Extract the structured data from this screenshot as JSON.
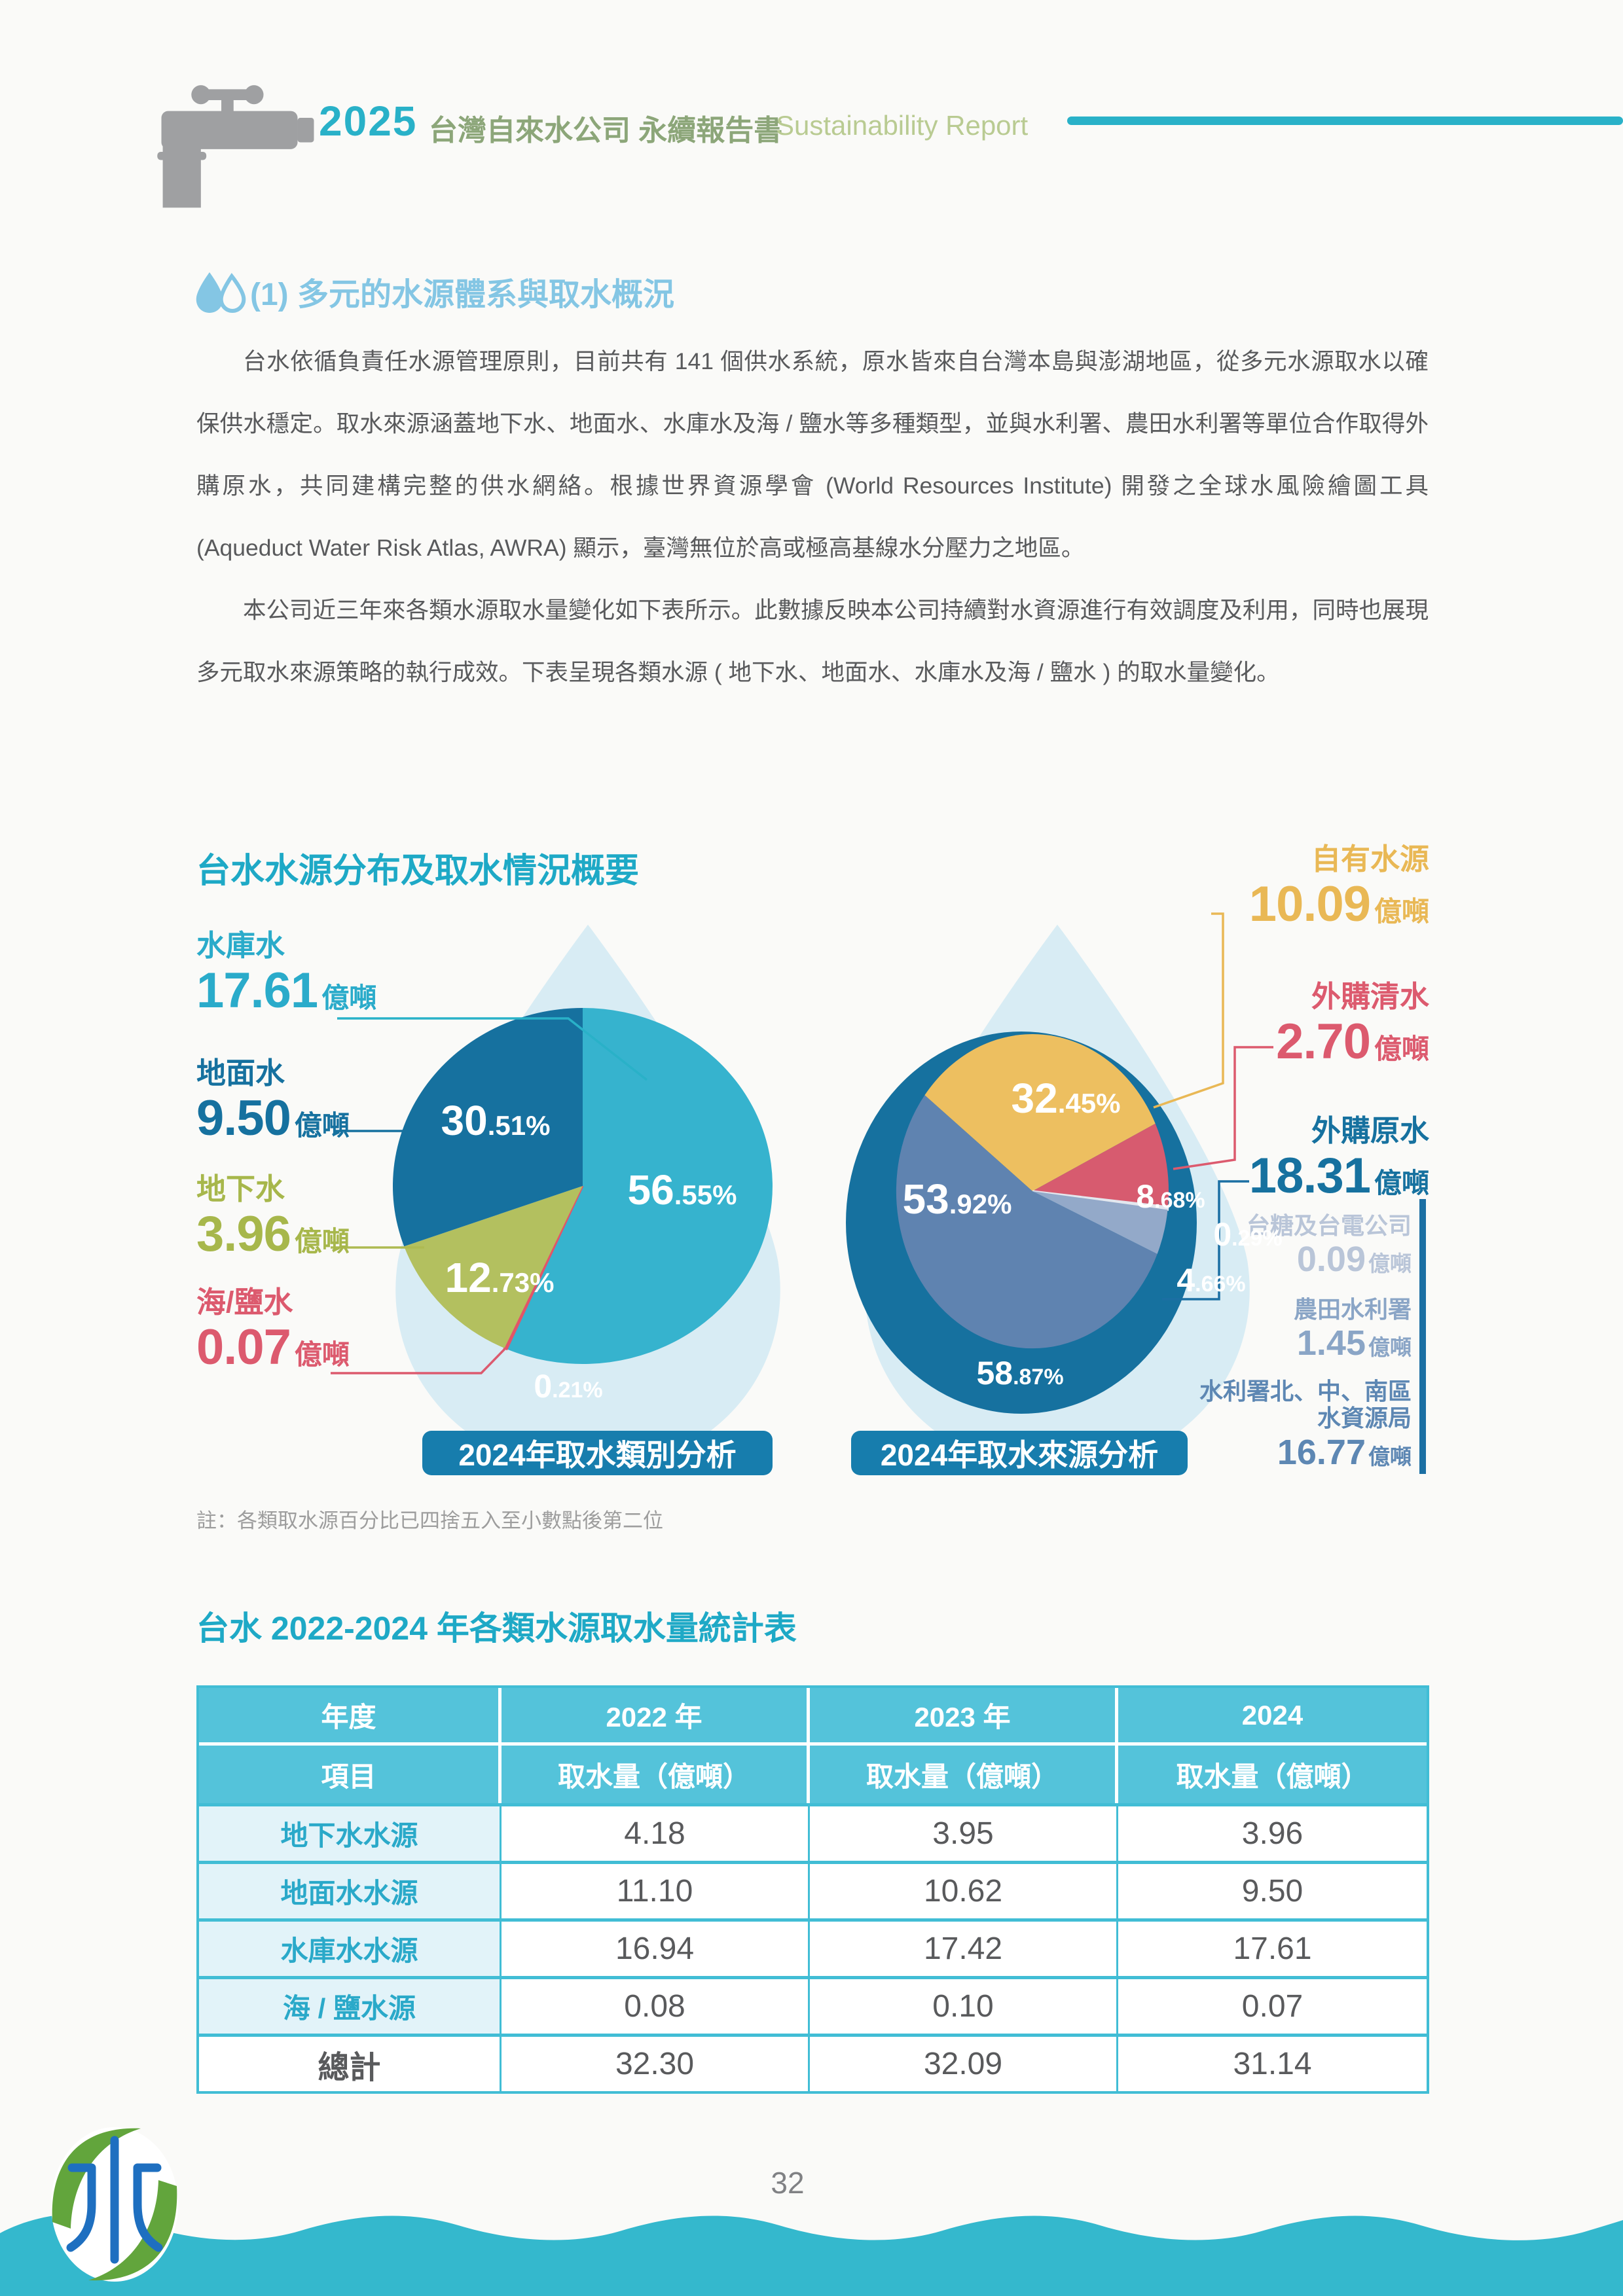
{
  "header": {
    "year": "2025",
    "title_zh": "台灣自來水公司 永續報告書",
    "title_en": "Sustainability Report"
  },
  "section": {
    "heading": "(1) 多元的水源體系與取水概況",
    "paragraph1": "台水依循負責任水源管理原則，目前共有 141 個供水系統，原水皆來自台灣本島與澎湖地區，從多元水源取水以確保供水穩定。取水來源涵蓋地下水、地面水、水庫水及海 / 鹽水等多種類型，並與水利署、農田水利署等單位合作取得外購原水，共同建構完整的供水網絡。根據世界資源學會 (World Resources Institute) 開發之全球水風險繪圖工具(Aqueduct Water Risk Atlas, AWRA) 顯示，臺灣無位於高或極高基線水分壓力之地區。",
    "paragraph2": "本公司近三年來各類水源取水量變化如下表所示。此數據反映本公司持續對水資源進行有效調度及利用，同時也展現多元取水來源策略的執行成效。下表呈現各類水源 ( 地下水、地面水、水庫水及海 / 鹽水 ) 的取水量變化。"
  },
  "infographic": {
    "title": "台水水源分布及取水情況概要",
    "note": "註：各類取水源百分比已四捨五入至小數點後第二位",
    "left": {
      "caption": "2024年取水類別分析",
      "labels": [
        {
          "name": "水庫水",
          "value": "17.61",
          "unit": "億噸"
        },
        {
          "name": "地面水",
          "value": "9.50",
          "unit": "億噸"
        },
        {
          "name": "地下水",
          "value": "3.96",
          "unit": "億噸"
        },
        {
          "name": "海/鹽水",
          "value": "0.07",
          "unit": "億噸"
        }
      ]
    },
    "right": {
      "caption": "2024年取水來源分析",
      "labels": [
        {
          "name": "自有水源",
          "value": "10.09",
          "unit": "億噸"
        },
        {
          "name": "外購清水",
          "value": "2.70",
          "unit": "億噸"
        },
        {
          "name": "外購原水",
          "value": "18.31",
          "unit": "億噸"
        }
      ],
      "sublabels": [
        {
          "name": "台糖及台電公司",
          "value": "0.09",
          "unit": "億噸"
        },
        {
          "name": "農田水利署",
          "value": "1.45",
          "unit": "億噸"
        },
        {
          "name": "水利署北、中、南區",
          "name2": "水資源局",
          "value": "16.77",
          "unit": "億噸"
        }
      ]
    }
  },
  "chart_data": [
    {
      "type": "pie",
      "title": "2024年取水類別分析",
      "start_angle_deg": 0,
      "slices": [
        {
          "label": "水庫水",
          "amount": 17.61,
          "unit": "億噸",
          "percent": 56.55,
          "color": "#36b3ce"
        },
        {
          "label": "海/鹽水",
          "amount": 0.07,
          "unit": "億噸",
          "percent": 0.21,
          "color": "#e25568"
        },
        {
          "label": "地下水",
          "amount": 3.96,
          "unit": "億噸",
          "percent": 12.73,
          "color": "#b3c05f"
        },
        {
          "label": "地面水",
          "amount": 9.5,
          "unit": "億噸",
          "percent": 30.51,
          "color": "#16719f"
        }
      ]
    },
    {
      "type": "pie",
      "title": "2024年取水來源分析",
      "start_angle_deg": 307.68,
      "slices": [
        {
          "label": "自有水源",
          "amount": 10.09,
          "unit": "億噸",
          "percent": 32.45,
          "color": "#edbf60"
        },
        {
          "label": "外購清水",
          "amount": 2.7,
          "unit": "億噸",
          "percent": 8.68,
          "color": "#d75b6f"
        },
        {
          "label": "外購原水－台糖及台電公司",
          "amount": 0.09,
          "unit": "億噸",
          "percent": 0.29,
          "color": "#e3e7ee"
        },
        {
          "label": "外購原水－農田水利署",
          "amount": 1.45,
          "unit": "億噸",
          "percent": 4.66,
          "color": "#93a9c9"
        },
        {
          "label": "外購原水－水利署北、中、南區水資源局",
          "amount": 16.77,
          "unit": "億噸",
          "percent": 53.92,
          "color": "#5f83b0"
        }
      ],
      "outer_ring": {
        "label": "外購原水",
        "amount": 18.31,
        "unit": "億噸",
        "percent": 58.87,
        "color": "#16719f"
      }
    }
  ],
  "table": {
    "title": "台水 2022-2024 年各類水源取水量統計表",
    "header_row1": [
      "年度",
      "2022 年",
      "2023 年",
      "2024"
    ],
    "header_row2": [
      "項目",
      "取水量（億噸）",
      "取水量（億噸）",
      "取水量（億噸）"
    ],
    "rows": [
      {
        "label": "地下水水源",
        "values": [
          "4.18",
          "3.95",
          "3.96"
        ]
      },
      {
        "label": "地面水水源",
        "values": [
          "11.10",
          "10.62",
          "9.50"
        ]
      },
      {
        "label": "水庫水水源",
        "values": [
          "16.94",
          "17.42",
          "17.61"
        ]
      },
      {
        "label": "海 / 鹽水源",
        "values": [
          "0.08",
          "0.10",
          "0.07"
        ]
      },
      {
        "label": "總計",
        "values": [
          "32.30",
          "32.09",
          "31.14"
        ]
      }
    ]
  },
  "footer": {
    "page_number": "32"
  },
  "theme": {
    "teal": "#29b1c8",
    "dark_blue": "#16719f",
    "olive": "#b3c05f",
    "red": "#dc5a6e",
    "amber": "#e9b855",
    "steel_blue": "#5f83b0",
    "drop_bg": "#d8ecf4",
    "table_header_bg": "#54c3da",
    "wave": "#34b8cd"
  }
}
